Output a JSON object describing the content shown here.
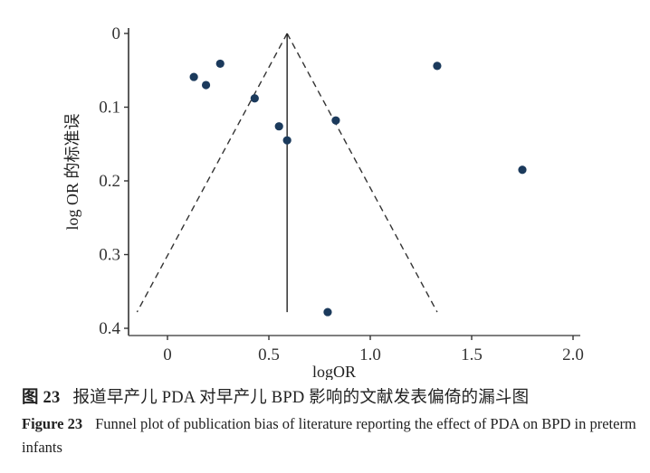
{
  "chart_data": {
    "type": "scatter",
    "subtype": "funnel_plot",
    "title": "",
    "xlabel": "logOR",
    "ylabel": "log OR 的标准误",
    "xlim": [
      -0.2,
      2.05
    ],
    "ylim": [
      0.4,
      0
    ],
    "y_inverted": true,
    "x_ticks": [
      0,
      0.5,
      1.0,
      1.5,
      2.0
    ],
    "x_tick_labels": [
      "0",
      "0.5",
      "1.0",
      "1.5",
      "2.0"
    ],
    "y_ticks": [
      0,
      0.1,
      0.2,
      0.3,
      0.4
    ],
    "y_tick_labels": [
      "0",
      "0.1",
      "0.2",
      "0.3",
      "0.4"
    ],
    "grid": false,
    "legend": null,
    "point_color": "#1b3a5c",
    "points": [
      {
        "x": 0.13,
        "y": 0.059
      },
      {
        "x": 0.19,
        "y": 0.07
      },
      {
        "x": 0.26,
        "y": 0.041
      },
      {
        "x": 0.43,
        "y": 0.088
      },
      {
        "x": 0.55,
        "y": 0.126
      },
      {
        "x": 0.59,
        "y": 0.145
      },
      {
        "x": 0.83,
        "y": 0.118
      },
      {
        "x": 1.33,
        "y": 0.044
      },
      {
        "x": 1.75,
        "y": 0.185
      },
      {
        "x": 0.79,
        "y": 0.378
      }
    ],
    "pooled_estimate": {
      "x": 0.59,
      "y_from": 0,
      "y_to": 0.378,
      "style": "solid"
    },
    "funnel_lines": [
      {
        "from": [
          0.59,
          0
        ],
        "to": [
          -0.15,
          0.378
        ],
        "style": "dashed"
      },
      {
        "from": [
          0.59,
          0
        ],
        "to": [
          1.33,
          0.378
        ],
        "style": "dashed"
      }
    ]
  },
  "caption": {
    "cn_label": "图 23",
    "cn_text": "报道早产儿 PDA 对早产儿 BPD 影响的文献发表偏倚的漏斗图",
    "en_label": "Figure 23",
    "en_text": "Funnel plot of publication bias of literature reporting the effect of PDA on BPD in preterm infants"
  }
}
